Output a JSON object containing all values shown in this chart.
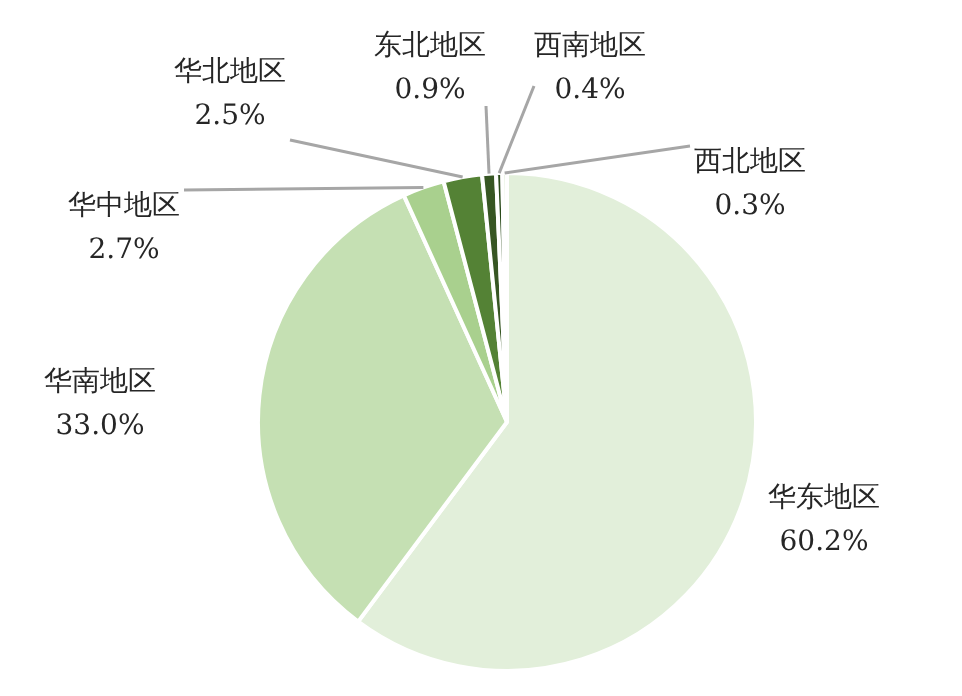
{
  "chart_data": {
    "type": "pie",
    "categories": [
      "华东地区",
      "华南地区",
      "华中地区",
      "华北地区",
      "东北地区",
      "西南地区",
      "西北地区"
    ],
    "values": [
      60.2,
      33.0,
      2.7,
      2.5,
      0.9,
      0.4,
      0.3
    ],
    "value_labels": [
      "60.2%",
      "33.0%",
      "2.7%",
      "2.5%",
      "0.9%",
      "0.4%",
      "0.3%"
    ],
    "colors": [
      "#e2efda",
      "#c5e0b3",
      "#a9d08e",
      "#548235",
      "#375623",
      "#2a4a1a",
      "#e2efda"
    ],
    "legend": false
  }
}
